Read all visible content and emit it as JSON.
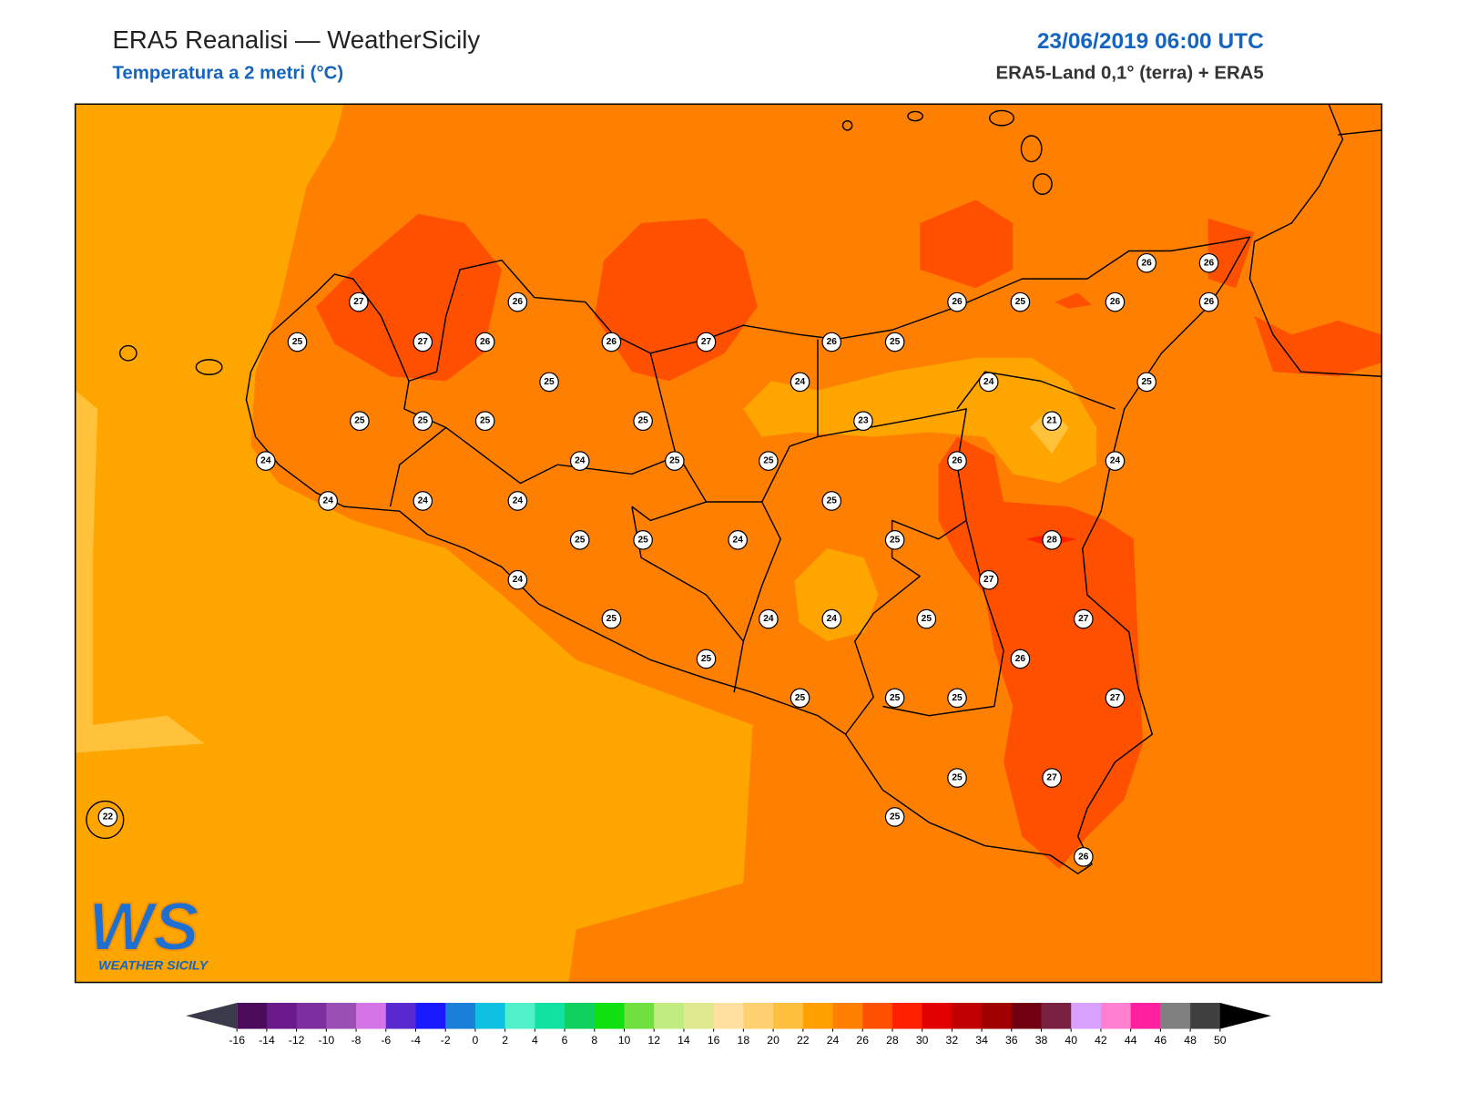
{
  "header": {
    "title": "ERA5 Reanalisi — WeatherSicily",
    "subtitle": "Temperatura a 2 metri (°C)",
    "datetime": "23/06/2019 06:00 UTC",
    "source": "ERA5-Land 0,1° (terra) + ERA5"
  },
  "stations": [
    27,
    26,
    25,
    27,
    26,
    26,
    27,
    26,
    25,
    26,
    25,
    26,
    26,
    26,
    26,
    25,
    24,
    24,
    25,
    25,
    25,
    25,
    25,
    23,
    21,
    24,
    24,
    25,
    25,
    26,
    24,
    24,
    24,
    24,
    25,
    25,
    25,
    24,
    25,
    28,
    24,
    27,
    25,
    24,
    24,
    25,
    27,
    25,
    26,
    25,
    25,
    25,
    27,
    25,
    27,
    25,
    26,
    22
  ],
  "colorbar": {
    "ticks": [
      -16,
      -14,
      -12,
      -10,
      -8,
      -6,
      -4,
      -2,
      0,
      2,
      4,
      6,
      8,
      10,
      12,
      14,
      16,
      18,
      20,
      22,
      24,
      26,
      28,
      30,
      32,
      34,
      36,
      38,
      40,
      42,
      44,
      46,
      48,
      50
    ],
    "colors": [
      "#4b0c5c",
      "#6a1a8a",
      "#7d2fa0",
      "#9a4fb5",
      "#d474e6",
      "#5a2ad0",
      "#1a1aff",
      "#1a7fd8",
      "#10c0e0",
      "#50f0c8",
      "#10e0a0",
      "#10d060",
      "#10e010",
      "#70e040",
      "#c0ec80",
      "#e0e890",
      "#ffe0a0",
      "#ffd070",
      "#ffc040",
      "#ffa000",
      "#ff8000",
      "#ff5000",
      "#ff2000",
      "#e00000",
      "#c00000",
      "#a00000",
      "#700010",
      "#7a2040",
      "#d8a0ff",
      "#ff80d0",
      "#ff20a0",
      "#808080",
      "#404040"
    ],
    "under_color": "#3a3a4a",
    "over_color": "#000000"
  },
  "logo": {
    "mark": "WS",
    "name": "WEATHER SICILY"
  }
}
